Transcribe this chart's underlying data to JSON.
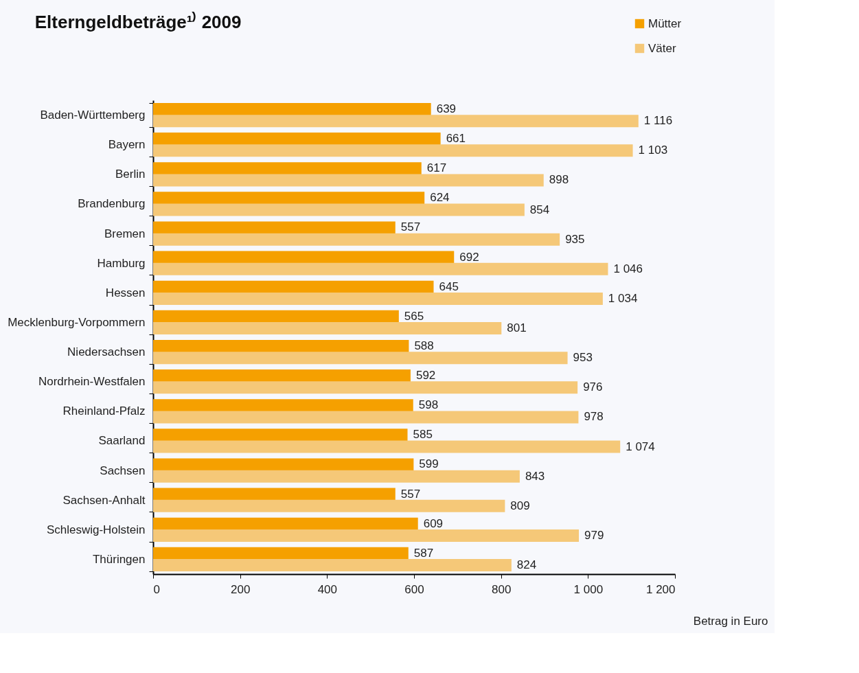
{
  "chart_data": {
    "type": "bar",
    "orientation": "horizontal",
    "title": "Elterngeldbeträge¹⁾ 2009",
    "xlabel": "Betrag in Euro",
    "categories": [
      "Baden-Württemberg",
      "Bayern",
      "Berlin",
      "Brandenburg",
      "Bremen",
      "Hamburg",
      "Hessen",
      "Mecklenburg-Vorpommern",
      "Niedersachsen",
      "Nordrhein-Westfalen",
      "Rheinland-Pfalz",
      "Saarland",
      "Sachsen",
      "Sachsen-Anhalt",
      "Schleswig-Holstein",
      "Thüringen"
    ],
    "series": [
      {
        "name": "Mütter",
        "color": "#f5a000",
        "values": [
          639,
          661,
          617,
          624,
          557,
          692,
          645,
          565,
          588,
          592,
          598,
          585,
          599,
          557,
          609,
          587
        ],
        "value_labels": [
          "639",
          "661",
          "617",
          "624",
          "557",
          "692",
          "645",
          "565",
          "588",
          "592",
          "598",
          "585",
          "599",
          "557",
          "609",
          "587"
        ]
      },
      {
        "name": "Väter",
        "color": "#f5c878",
        "values": [
          1116,
          1103,
          898,
          854,
          935,
          1046,
          1034,
          801,
          953,
          976,
          978,
          1074,
          843,
          809,
          979,
          824
        ],
        "value_labels": [
          "1 116",
          "1 103",
          "898",
          "854",
          "935",
          "1 046",
          "1 034",
          "801",
          "953",
          "976",
          "978",
          "1 074",
          "843",
          "809",
          "979",
          "824"
        ]
      }
    ],
    "xlim": [
      0,
      1200
    ],
    "xticks": [
      0,
      200,
      400,
      600,
      800,
      {
        "value": 1000,
        "label": "1 000"
      },
      {
        "value": 1200,
        "label": "1 200"
      }
    ],
    "legend": "top right",
    "grid": false
  }
}
